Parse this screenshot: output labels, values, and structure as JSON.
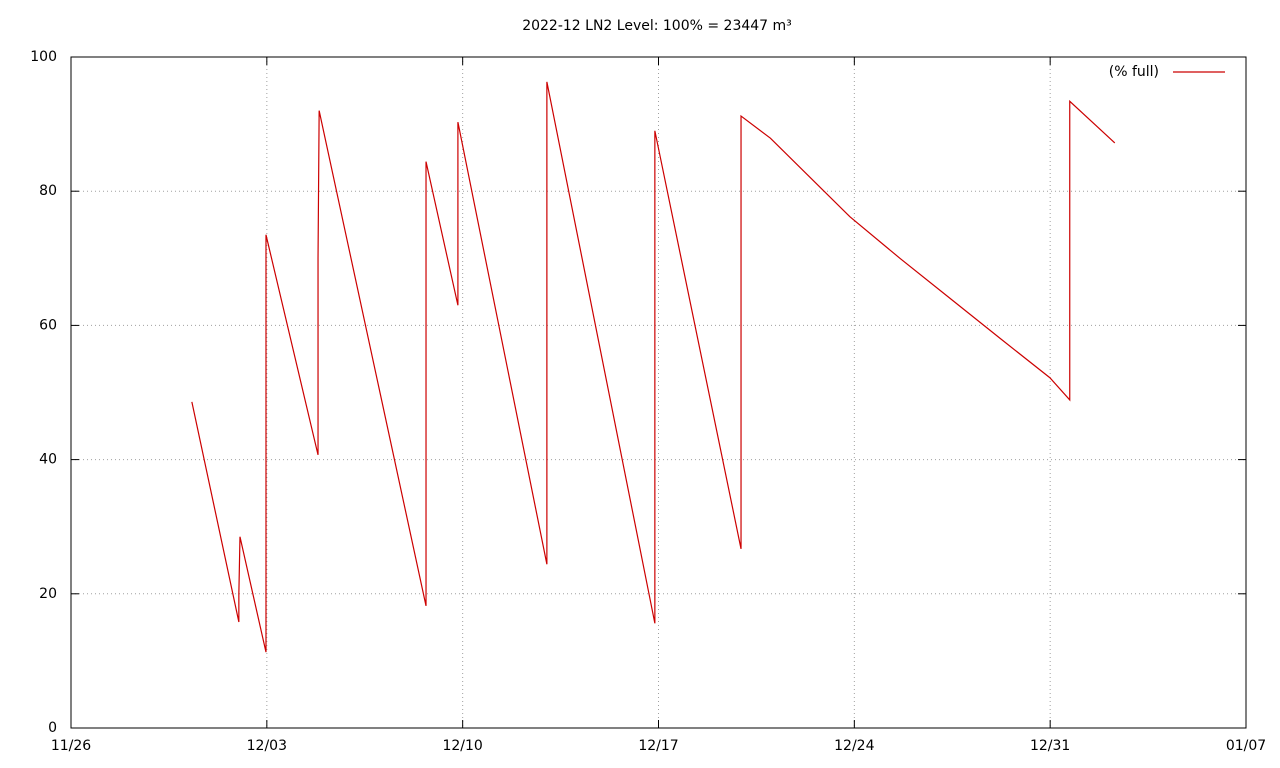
{
  "chart_data": {
    "type": "line",
    "title": "2022-12 LN2 Level: 100% = 23447 m³",
    "x": [
      4.32,
      6.0,
      6.0,
      6.04,
      6.97,
      6.97,
      8.83,
      8.83,
      8.87,
      12.69,
      12.69,
      13.83,
      13.83,
      17.01,
      17.01,
      20.87,
      20.87,
      23.95,
      23.95,
      25.0,
      27.84,
      29.63,
      31.4,
      33.2,
      34.99,
      35.7,
      35.7,
      37.31
    ],
    "series": [
      {
        "name": "(% full)",
        "color": "#cc0000",
        "values": [
          48.6,
          15.8,
          20.0,
          28.5,
          11.3,
          73.5,
          40.7,
          70.0,
          92.0,
          18.2,
          84.4,
          63.0,
          90.3,
          24.4,
          96.3,
          15.6,
          89.0,
          26.7,
          91.2,
          87.9,
          76.2,
          70.0,
          64.1,
          58.1,
          52.2,
          48.9,
          93.4,
          87.2
        ]
      }
    ],
    "xlim": [
      0,
      42
    ],
    "xticks": [
      {
        "value": 0,
        "label": "11/26"
      },
      {
        "value": 7,
        "label": "12/03"
      },
      {
        "value": 14,
        "label": "12/10"
      },
      {
        "value": 21,
        "label": "12/17"
      },
      {
        "value": 28,
        "label": "12/24"
      },
      {
        "value": 35,
        "label": "12/31"
      },
      {
        "value": 42,
        "label": "01/07"
      }
    ],
    "ylim": [
      0,
      100
    ],
    "yticks": [
      0,
      20,
      40,
      60,
      80,
      100
    ],
    "grid": true,
    "legend": "top-right"
  }
}
